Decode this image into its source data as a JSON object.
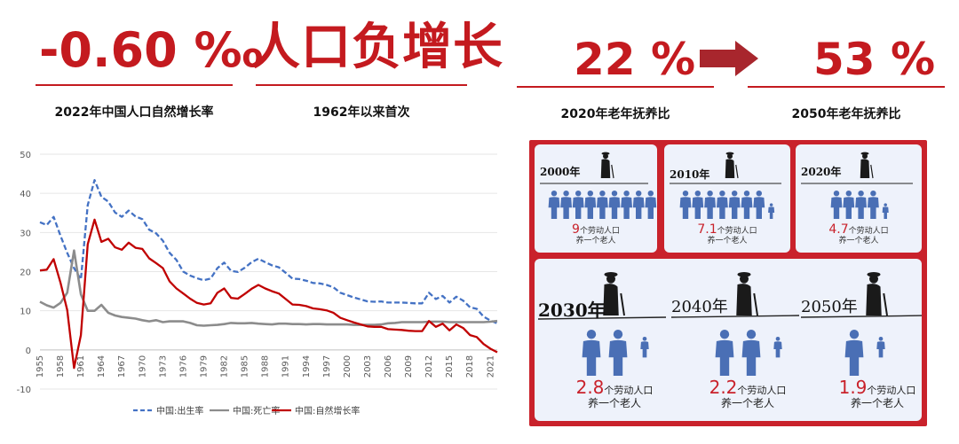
{
  "metrics": {
    "rate_value": "-0.60 ‰",
    "rate_caption": "2022年中国人口自然增长率",
    "headline": "人口负增长",
    "headline_caption": "1962年以来首次",
    "ratio_2020_value": "22 %",
    "ratio_2020_caption": "2020年老年抚养比",
    "ratio_2050_value": "53 %",
    "ratio_2050_caption": "2050年老年抚养比"
  },
  "colors": {
    "accent": "#c41a1f",
    "birth": "#4472c4",
    "death": "#8c8c8c",
    "natural": "#c00000"
  },
  "chart_data": {
    "type": "line",
    "title": "",
    "xlabel": "",
    "ylabel": "",
    "ylim": [
      -10,
      50
    ],
    "yticks": [
      "-10",
      "0",
      "10",
      "20",
      "30",
      "40",
      "50"
    ],
    "xticks": [
      "1955",
      "1958",
      "1961",
      "1964",
      "1967",
      "1970",
      "1973",
      "1976",
      "1979",
      "1982",
      "1985",
      "1988",
      "1991",
      "1994",
      "1997",
      "2000",
      "2003",
      "2006",
      "2009",
      "2012",
      "2015",
      "2018",
      "2021"
    ],
    "x": [
      1955,
      1956,
      1957,
      1958,
      1959,
      1960,
      1961,
      1962,
      1963,
      1964,
      1965,
      1966,
      1967,
      1968,
      1969,
      1970,
      1971,
      1972,
      1973,
      1974,
      1975,
      1976,
      1977,
      1978,
      1979,
      1980,
      1981,
      1982,
      1983,
      1984,
      1985,
      1986,
      1987,
      1988,
      1989,
      1990,
      1991,
      1992,
      1993,
      1994,
      1995,
      1996,
      1997,
      1998,
      1999,
      2000,
      2001,
      2002,
      2003,
      2004,
      2005,
      2006,
      2007,
      2008,
      2009,
      2010,
      2011,
      2012,
      2013,
      2014,
      2015,
      2016,
      2017,
      2018,
      2019,
      2020,
      2021,
      2022
    ],
    "legend_position": "bottom",
    "series": [
      {
        "name": "中国:出生率",
        "style": "dashed",
        "values": [
          32.6,
          31.9,
          34.0,
          29.2,
          24.8,
          20.9,
          18.0,
          37.0,
          43.4,
          39.1,
          37.9,
          35.1,
          34.0,
          35.6,
          34.1,
          33.4,
          30.7,
          29.8,
          27.9,
          24.8,
          23.0,
          20.0,
          19.0,
          18.3,
          17.8,
          18.2,
          20.9,
          22.3,
          20.2,
          19.9,
          21.0,
          22.4,
          23.3,
          22.4,
          21.6,
          21.1,
          19.7,
          18.2,
          18.1,
          17.7,
          17.1,
          17.0,
          16.6,
          16.0,
          14.6,
          14.0,
          13.4,
          12.9,
          12.4,
          12.3,
          12.4,
          12.1,
          12.1,
          12.1,
          12.0,
          11.9,
          11.9,
          14.6,
          13.0,
          13.8,
          12.1,
          13.6,
          12.6,
          10.9,
          10.5,
          8.5,
          7.5,
          6.8
        ]
      },
      {
        "name": "中国:死亡率",
        "style": "solid",
        "values": [
          12.3,
          11.4,
          10.8,
          12.0,
          14.6,
          25.4,
          14.2,
          10.0,
          10.0,
          11.5,
          9.5,
          8.8,
          8.4,
          8.2,
          8.0,
          7.6,
          7.3,
          7.6,
          7.1,
          7.3,
          7.3,
          7.3,
          6.9,
          6.3,
          6.2,
          6.3,
          6.4,
          6.6,
          6.9,
          6.8,
          6.8,
          6.9,
          6.7,
          6.6,
          6.5,
          6.7,
          6.7,
          6.6,
          6.6,
          6.5,
          6.6,
          6.6,
          6.5,
          6.5,
          6.5,
          6.5,
          6.4,
          6.4,
          6.4,
          6.4,
          6.5,
          6.8,
          6.9,
          7.1,
          7.1,
          7.1,
          7.1,
          7.2,
          7.2,
          7.2,
          7.1,
          7.1,
          7.1,
          7.1,
          7.1,
          7.1,
          7.2,
          7.4
        ]
      },
      {
        "name": "中国:自然增长率",
        "style": "solid",
        "values": [
          20.3,
          20.5,
          23.2,
          17.2,
          10.2,
          -4.6,
          3.8,
          27.0,
          33.3,
          27.6,
          28.4,
          26.2,
          25.6,
          27.4,
          26.1,
          25.8,
          23.4,
          22.2,
          20.9,
          17.5,
          15.7,
          14.4,
          13.1,
          12.0,
          11.6,
          11.9,
          14.6,
          15.7,
          13.3,
          13.1,
          14.3,
          15.6,
          16.6,
          15.7,
          15.0,
          14.4,
          13.0,
          11.6,
          11.5,
          11.2,
          10.6,
          10.4,
          10.1,
          9.5,
          8.2,
          7.6,
          7.0,
          6.5,
          6.0,
          5.9,
          5.9,
          5.3,
          5.2,
          5.1,
          4.9,
          4.8,
          4.8,
          7.4,
          5.9,
          6.7,
          5.0,
          6.5,
          5.6,
          3.8,
          3.3,
          1.5,
          0.3,
          -0.6
        ]
      }
    ]
  },
  "infographic": {
    "cards": [
      {
        "year": "2000年",
        "num": "9",
        "ratio_line1": "个劳动人口",
        "ratio_line2": "养一个老人",
        "workers": 9
      },
      {
        "year": "2010年",
        "num": "7.1",
        "ratio_line1": "个劳动人口",
        "ratio_line2": "养一个老人",
        "workers": 7.1
      },
      {
        "year": "2020年",
        "num": "4.7",
        "ratio_line1": "个劳动人口",
        "ratio_line2": "养一个老人",
        "workers": 4.7
      },
      {
        "year": "2030年",
        "num": "2.8",
        "ratio_line1": "个劳动人口",
        "ratio_line2": "养一个老人",
        "workers": 2.8
      },
      {
        "year": "2040年",
        "num": "2.2",
        "ratio_line1": "个劳动人口",
        "ratio_line2": "养一个老人",
        "workers": 2.2
      },
      {
        "year": "2050年",
        "num": "1.9",
        "ratio_line1": "个劳动人口",
        "ratio_line2": "养一个老人",
        "workers": 1.9
      }
    ]
  }
}
